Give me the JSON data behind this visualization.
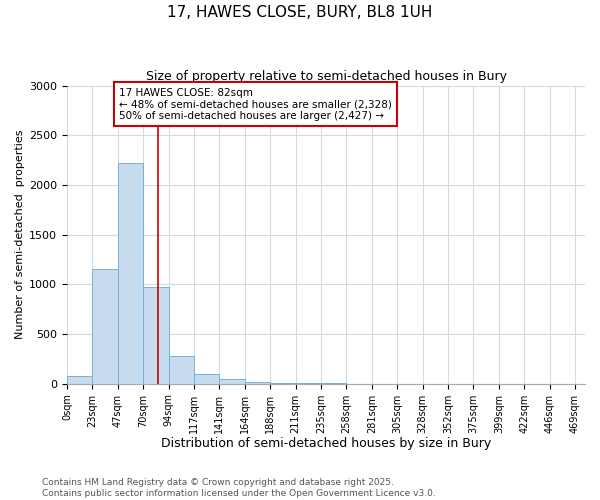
{
  "title": "17, HAWES CLOSE, BURY, BL8 1UH",
  "subtitle": "Size of property relative to semi-detached houses in Bury",
  "xlabel": "Distribution of semi-detached houses by size in Bury",
  "ylabel": "Number of semi-detached  properties",
  "bin_labels": [
    "0sqm",
    "23sqm",
    "47sqm",
    "70sqm",
    "94sqm",
    "117sqm",
    "141sqm",
    "164sqm",
    "188sqm",
    "211sqm",
    "235sqm",
    "258sqm",
    "281sqm",
    "305sqm",
    "328sqm",
    "352sqm",
    "375sqm",
    "399sqm",
    "422sqm",
    "446sqm",
    "469sqm"
  ],
  "bar_values": [
    75,
    1150,
    2225,
    975,
    275,
    100,
    50,
    20,
    10,
    3,
    3,
    0,
    0,
    0,
    0,
    0,
    0,
    0,
    0,
    0
  ],
  "bar_color": "#c8dcf0",
  "bar_edge_color": "#7ab0d4",
  "property_size": 82,
  "property_line_color": "#cc0000",
  "annotation_text": "17 HAWES CLOSE: 82sqm\n← 48% of semi-detached houses are smaller (2,328)\n50% of semi-detached houses are larger (2,427) →",
  "annotation_box_color": "#ffffff",
  "annotation_border_color": "#cc0000",
  "footnote": "Contains HM Land Registry data © Crown copyright and database right 2025.\nContains public sector information licensed under the Open Government Licence v3.0.",
  "ylim": [
    0,
    3000
  ],
  "bin_width": 23,
  "background_color": "#ffffff",
  "grid_color": "#d0dce8",
  "title_fontsize": 11,
  "subtitle_fontsize": 9,
  "xlabel_fontsize": 9,
  "ylabel_fontsize": 8,
  "tick_fontsize": 7,
  "annotation_fontsize": 7.5,
  "footnote_fontsize": 6.5
}
